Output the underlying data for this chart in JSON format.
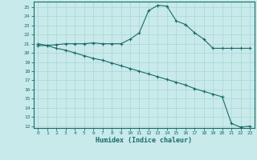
{
  "xlabel": "Humidex (Indice chaleur)",
  "bg_color": "#c8eaea",
  "line_color": "#1a6b6b",
  "grid_color": "#b0d8d8",
  "xlim": [
    -0.5,
    23.5
  ],
  "ylim": [
    11.8,
    25.6
  ],
  "yticks": [
    12,
    13,
    14,
    15,
    16,
    17,
    18,
    19,
    20,
    21,
    22,
    23,
    24,
    25
  ],
  "xticks": [
    0,
    1,
    2,
    3,
    4,
    5,
    6,
    7,
    8,
    9,
    10,
    11,
    12,
    13,
    14,
    15,
    16,
    17,
    18,
    19,
    20,
    21,
    22,
    23
  ],
  "series1_x": [
    0,
    1,
    2,
    3,
    4,
    5,
    6,
    7,
    8,
    9,
    10,
    11,
    12,
    13,
    14,
    15,
    16,
    17,
    18,
    19,
    20,
    21,
    22,
    23
  ],
  "series1_y": [
    20.8,
    20.8,
    20.9,
    21.0,
    21.0,
    21.0,
    21.1,
    21.0,
    21.0,
    21.0,
    21.5,
    22.2,
    24.6,
    25.2,
    25.1,
    23.5,
    23.1,
    22.2,
    21.5,
    20.5,
    20.5,
    20.5,
    20.5,
    20.5
  ],
  "series2_x": [
    0,
    1,
    2,
    3,
    4,
    5,
    6,
    7,
    8,
    9,
    10,
    11,
    12,
    13,
    14,
    15,
    16,
    17,
    18,
    19,
    20,
    21,
    22,
    23
  ],
  "series2_y": [
    21.0,
    20.8,
    20.5,
    20.3,
    20.0,
    19.7,
    19.4,
    19.2,
    18.9,
    18.6,
    18.3,
    18.0,
    17.7,
    17.4,
    17.1,
    16.8,
    16.5,
    16.1,
    15.8,
    15.5,
    15.2,
    12.3,
    11.9,
    12.0
  ]
}
